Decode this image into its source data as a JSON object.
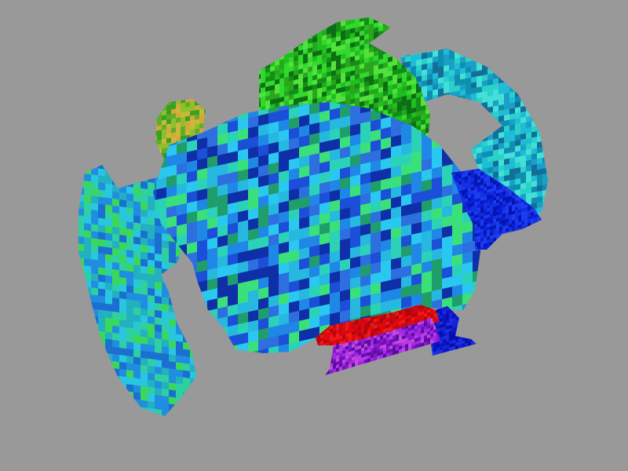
{
  "scene": {
    "background": "#999999",
    "patches": [
      {
        "name": "outer-cyan-shell",
        "palette": [
          "#1fbcd6",
          "#2ad1c9",
          "#0f8fb0",
          "#44e0d8",
          "#1a9fc8",
          "#136f9a"
        ]
      },
      {
        "name": "green-cap",
        "palette": [
          "#1fbf1f",
          "#31d82e",
          "#138f17",
          "#52e23b",
          "#0d6f14",
          "#2aa61e"
        ]
      },
      {
        "name": "yellow-green-spot",
        "palette": [
          "#8fbf2a",
          "#c8b93a",
          "#5fae2a",
          "#d2a83a",
          "#3d9e22"
        ]
      },
      {
        "name": "central-blue-green-body",
        "palette": [
          "#1f88e6",
          "#27b8e0",
          "#1c4fd8",
          "#2bd2b8",
          "#2ac7f0",
          "#1f9e6b",
          "#2e6fe0",
          "#0e2fa8",
          "#3ae07a"
        ]
      },
      {
        "name": "left-green-flap",
        "palette": [
          "#2fd0a0",
          "#29c6e0",
          "#1f8ee0",
          "#3ad85a",
          "#1a6fd0",
          "#23b0c0"
        ]
      },
      {
        "name": "dark-blue-wedge",
        "palette": [
          "#0a1fd8",
          "#1430e0",
          "#0616b0",
          "#1c3cf0"
        ]
      },
      {
        "name": "red-band",
        "palette": [
          "#e00a0a",
          "#c80814",
          "#f01a1a",
          "#b0060f"
        ]
      },
      {
        "name": "purple-sheet",
        "palette": [
          "#8a1ad0",
          "#a02ae0",
          "#6e10b8",
          "#b83ae8",
          "#5a0ea0",
          "#c44ad8"
        ]
      },
      {
        "name": "blue-right-tail",
        "palette": [
          "#0a14c8",
          "#1424d8",
          "#0610a8",
          "#1c2ee0"
        ]
      }
    ]
  }
}
